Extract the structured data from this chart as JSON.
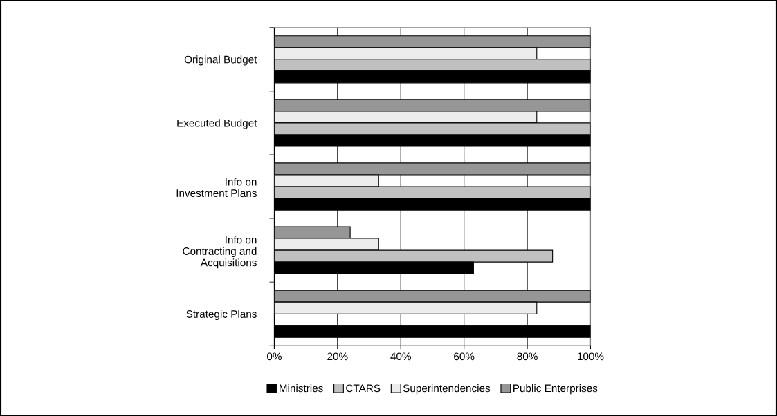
{
  "chart_data": {
    "type": "bar",
    "orientation": "horizontal",
    "categories": [
      "Original Budget",
      "Executed Budget",
      "Info on\nInvestment Plans",
      "Info on\nContracting and\nAcquisitions",
      "Strategic Plans"
    ],
    "series": [
      {
        "name": "Public Enterprises",
        "color": "#969696",
        "values": [
          100,
          100,
          100,
          24,
          100
        ]
      },
      {
        "name": "Superintendencies",
        "color": "#ececec",
        "values": [
          83,
          83,
          33,
          33,
          83
        ]
      },
      {
        "name": "CTARS",
        "color": "#c0c0c0",
        "values": [
          100,
          100,
          100,
          88,
          null
        ]
      },
      {
        "name": "Ministries",
        "color": "#000000",
        "values": [
          100,
          100,
          100,
          63,
          100
        ]
      }
    ],
    "xlim": [
      0,
      100
    ],
    "xticks": [
      {
        "value": 0,
        "label": "0%"
      },
      {
        "value": 20,
        "label": "20%"
      },
      {
        "value": 40,
        "label": "40%"
      },
      {
        "value": 60,
        "label": "60%"
      },
      {
        "value": 80,
        "label": "80%"
      },
      {
        "value": 100,
        "label": "100%"
      }
    ],
    "grid": "x",
    "legend": "bottom"
  }
}
